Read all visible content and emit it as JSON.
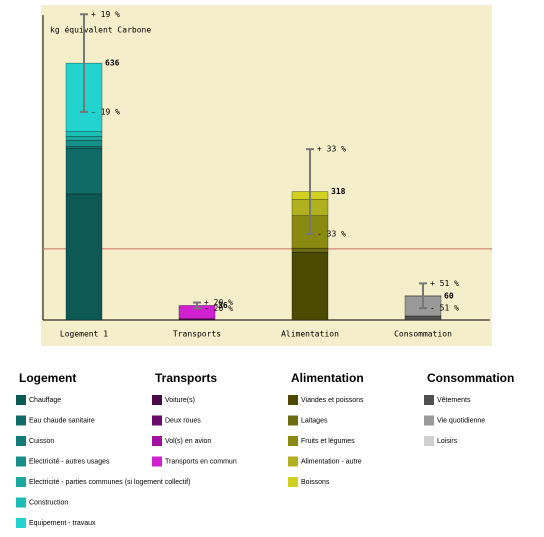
{
  "chart_data": {
    "type": "stacked-bar",
    "y_label": "kg équivalent Carbone",
    "categories": [
      "Logement 1",
      "Transports",
      "Alimentation",
      "Consommation"
    ],
    "totals": [
      636,
      36,
      318,
      60
    ],
    "errors": [
      19,
      20,
      33,
      51
    ],
    "error_labels_plus": [
      "+ 19 %",
      "+ 20 %",
      "+ 33 %",
      "+ 51 %"
    ],
    "error_labels_minus": [
      "- 19 %",
      "- 20 %",
      "- 33 %",
      "- 51 %"
    ],
    "reference_line": 176,
    "reference_color": "#d07060",
    "ylim": [
      0,
      755
    ],
    "groups": [
      {
        "name": "Logement",
        "segments": [
          {
            "name": "Chauffage",
            "color": "#0d5a55",
            "value": 312
          },
          {
            "name": "Eau chaude sanitaire",
            "color": "#106a66",
            "value": 113
          },
          {
            "name": "Cuisson",
            "color": "#137a75",
            "value": 5
          },
          {
            "name": "Electricité - autres usages",
            "color": "#179089",
            "value": 15
          },
          {
            "name": "Electricité - parties communes (si logement collectif)",
            "color": "#1aa8a0",
            "value": 9
          },
          {
            "name": "Construction",
            "color": "#1cbfb6",
            "value": 12
          },
          {
            "name": "Equipement - travaux",
            "color": "#22d3d0",
            "value": 170
          }
        ]
      },
      {
        "name": "Transports",
        "segments": [
          {
            "name": "Voiture(s)",
            "color": "#4a0a4a",
            "value": 3
          },
          {
            "name": "Deux roues",
            "color": "#6a0a6a",
            "value": 0
          },
          {
            "name": "Vol(s) en avion",
            "color": "#a010a0",
            "value": 0
          },
          {
            "name": "Transports en commun",
            "color": "#d020d0",
            "value": 33
          }
        ]
      },
      {
        "name": "Alimentation",
        "segments": [
          {
            "name": "Viandes et poissons",
            "color": "#4a4a00",
            "value": 168
          },
          {
            "name": "Laitages",
            "color": "#6a6a10",
            "value": 10
          },
          {
            "name": "Fruits et légumes",
            "color": "#8a8a10",
            "value": 80
          },
          {
            "name": "Alimentation - autre",
            "color": "#b0b020",
            "value": 40
          },
          {
            "name": "Boissons",
            "color": "#d0d020",
            "value": 20
          }
        ]
      },
      {
        "name": "Consommation",
        "segments": [
          {
            "name": "Vêtements",
            "color": "#505050",
            "value": 10
          },
          {
            "name": "Vie quotidienne",
            "color": "#999999",
            "value": 48
          },
          {
            "name": "Loisirs",
            "color": "#d0d0d0",
            "value": 2
          }
        ]
      }
    ]
  }
}
